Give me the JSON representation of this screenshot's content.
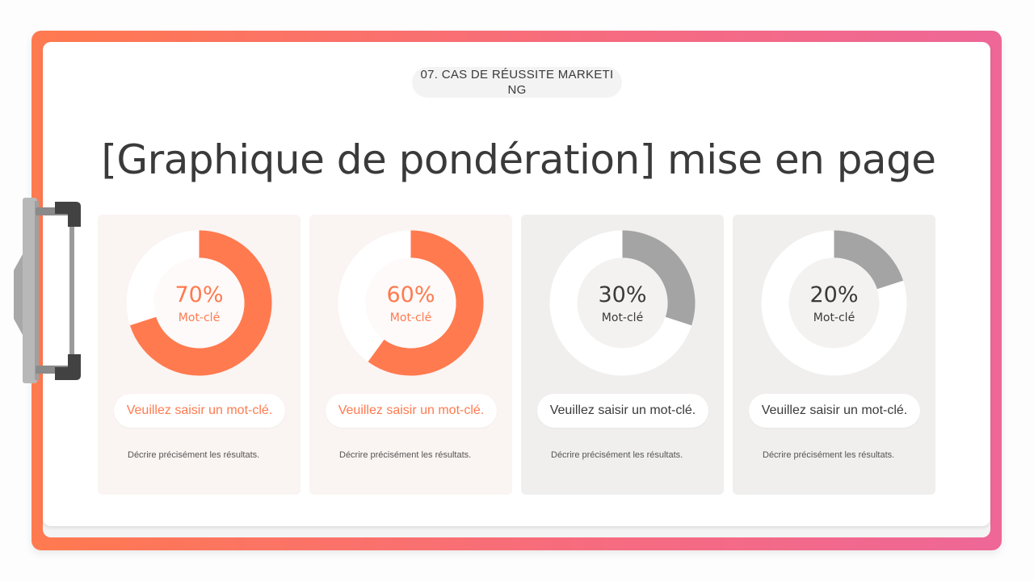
{
  "header": {
    "section_label": "07. CAS DE RÉUSSITE MARKETING",
    "title": "[Graphique de pondération] mise en page"
  },
  "colors": {
    "accent": "#ff7a4f",
    "accent_end": "#ee6797",
    "muted": "#a4a4a4",
    "text": "#3a3a3a"
  },
  "chart_data": [
    {
      "type": "pie",
      "style": "donut",
      "values": [
        70,
        30
      ],
      "label": "70%",
      "keyword": "Mot-clé",
      "color": "#ff7a4f"
    },
    {
      "type": "pie",
      "style": "donut",
      "values": [
        60,
        40
      ],
      "label": "60%",
      "keyword": "Mot-clé",
      "color": "#ff7a4f"
    },
    {
      "type": "pie",
      "style": "donut",
      "values": [
        30,
        70
      ],
      "label": "30%",
      "keyword": "Mot-clé",
      "color": "#a4a4a4"
    },
    {
      "type": "pie",
      "style": "donut",
      "values": [
        20,
        80
      ],
      "label": "20%",
      "keyword": "Mot-clé",
      "color": "#a4a4a4"
    }
  ],
  "cards": [
    {
      "pill_text": "Veuillez saisir un mot-clé.",
      "description": "Décrire précisément les résultats."
    },
    {
      "pill_text": "Veuillez saisir un mot-clé.",
      "description": "Décrire précisément les résultats."
    },
    {
      "pill_text": "Veuillez saisir un mot-clé.",
      "description": "Décrire précisément les résultats."
    },
    {
      "pill_text": "Veuillez saisir un mot-clé.",
      "description": "Décrire précisément les résultats."
    }
  ]
}
